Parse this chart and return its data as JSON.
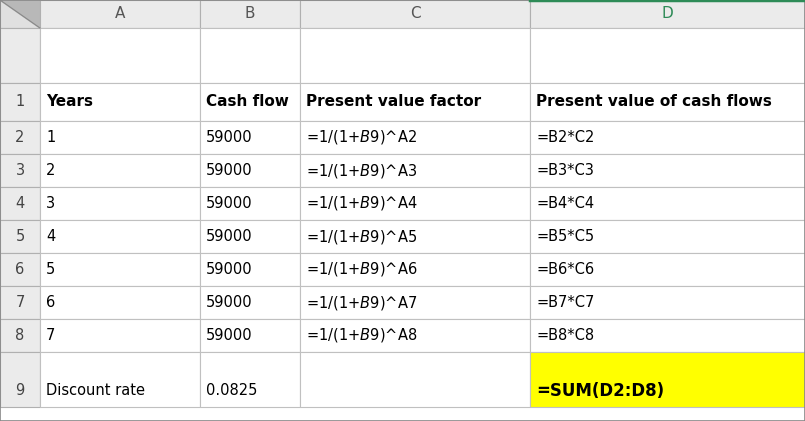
{
  "col_headers": [
    "A",
    "B",
    "C",
    "D"
  ],
  "col_D_header_color": "#2e8b57",
  "grid_color": "#c0c0c0",
  "row1_text": [
    "Years",
    "Cash flow",
    "Present value factor",
    "Present value of cash flows"
  ],
  "data_rows": [
    [
      "1",
      "59000",
      "=1/(1+$B$9)^A2",
      "=B2*C2"
    ],
    [
      "2",
      "59000",
      "=1/(1+$B$9)^A3",
      "=B3*C3"
    ],
    [
      "3",
      "59000",
      "=1/(1+$B$9)^A4",
      "=B4*C4"
    ],
    [
      "4",
      "59000",
      "=1/(1+$B$9)^A5",
      "=B5*C5"
    ],
    [
      "5",
      "59000",
      "=1/(1+$B$9)^A6",
      "=B6*C6"
    ],
    [
      "6",
      "59000",
      "=1/(1+$B$9)^A7",
      "=B7*C7"
    ],
    [
      "7",
      "59000",
      "=1/(1+$B$9)^A8",
      "=B8*C8"
    ]
  ],
  "row9_data": [
    "Discount rate",
    "0.0825",
    "",
    "=SUM(D2:D8)"
  ],
  "cell_bg_yellow": "#ffff00",
  "text_color_formula": "#000000",
  "fig_width": 8.05,
  "fig_height": 4.21,
  "font_size_header": 11,
  "font_size_data": 10.5,
  "font_size_col_letter": 11,
  "font_size_row9_sum": 12
}
